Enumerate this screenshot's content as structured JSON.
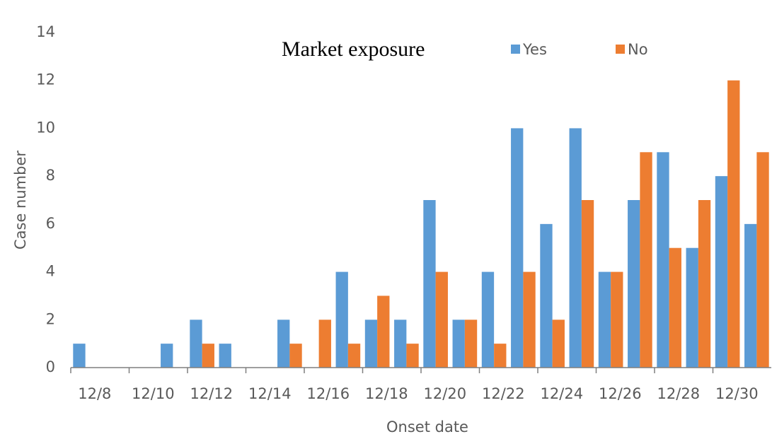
{
  "chart_data": {
    "type": "bar",
    "legend_title": "Market exposure",
    "xlabel": "Onset date",
    "ylabel": "Case number",
    "categories": [
      "12/8",
      null,
      "12/10",
      null,
      "12/12",
      null,
      "12/14",
      null,
      "12/16",
      null,
      "12/18",
      null,
      "12/20",
      null,
      "12/22",
      null,
      "12/24",
      null,
      "12/26",
      null,
      "12/28",
      null,
      "12/30",
      null
    ],
    "series": [
      {
        "name": "Yes",
        "color": "#5b9bd5",
        "values": [
          1,
          0,
          0,
          1,
          2,
          1,
          0,
          2,
          0,
          4,
          2,
          2,
          7,
          2,
          4,
          10,
          6,
          10,
          4,
          7,
          9,
          5,
          8,
          6
        ]
      },
      {
        "name": "No",
        "color": "#ed7d31",
        "values": [
          0,
          0,
          0,
          0,
          1,
          0,
          0,
          1,
          2,
          1,
          3,
          1,
          4,
          2,
          1,
          4,
          2,
          7,
          4,
          9,
          5,
          7,
          12,
          9
        ]
      }
    ],
    "ylim": [
      0,
      14
    ],
    "yticks": [
      0,
      2,
      4,
      6,
      8,
      10,
      12,
      14
    ],
    "grid": false,
    "legend": "top"
  }
}
